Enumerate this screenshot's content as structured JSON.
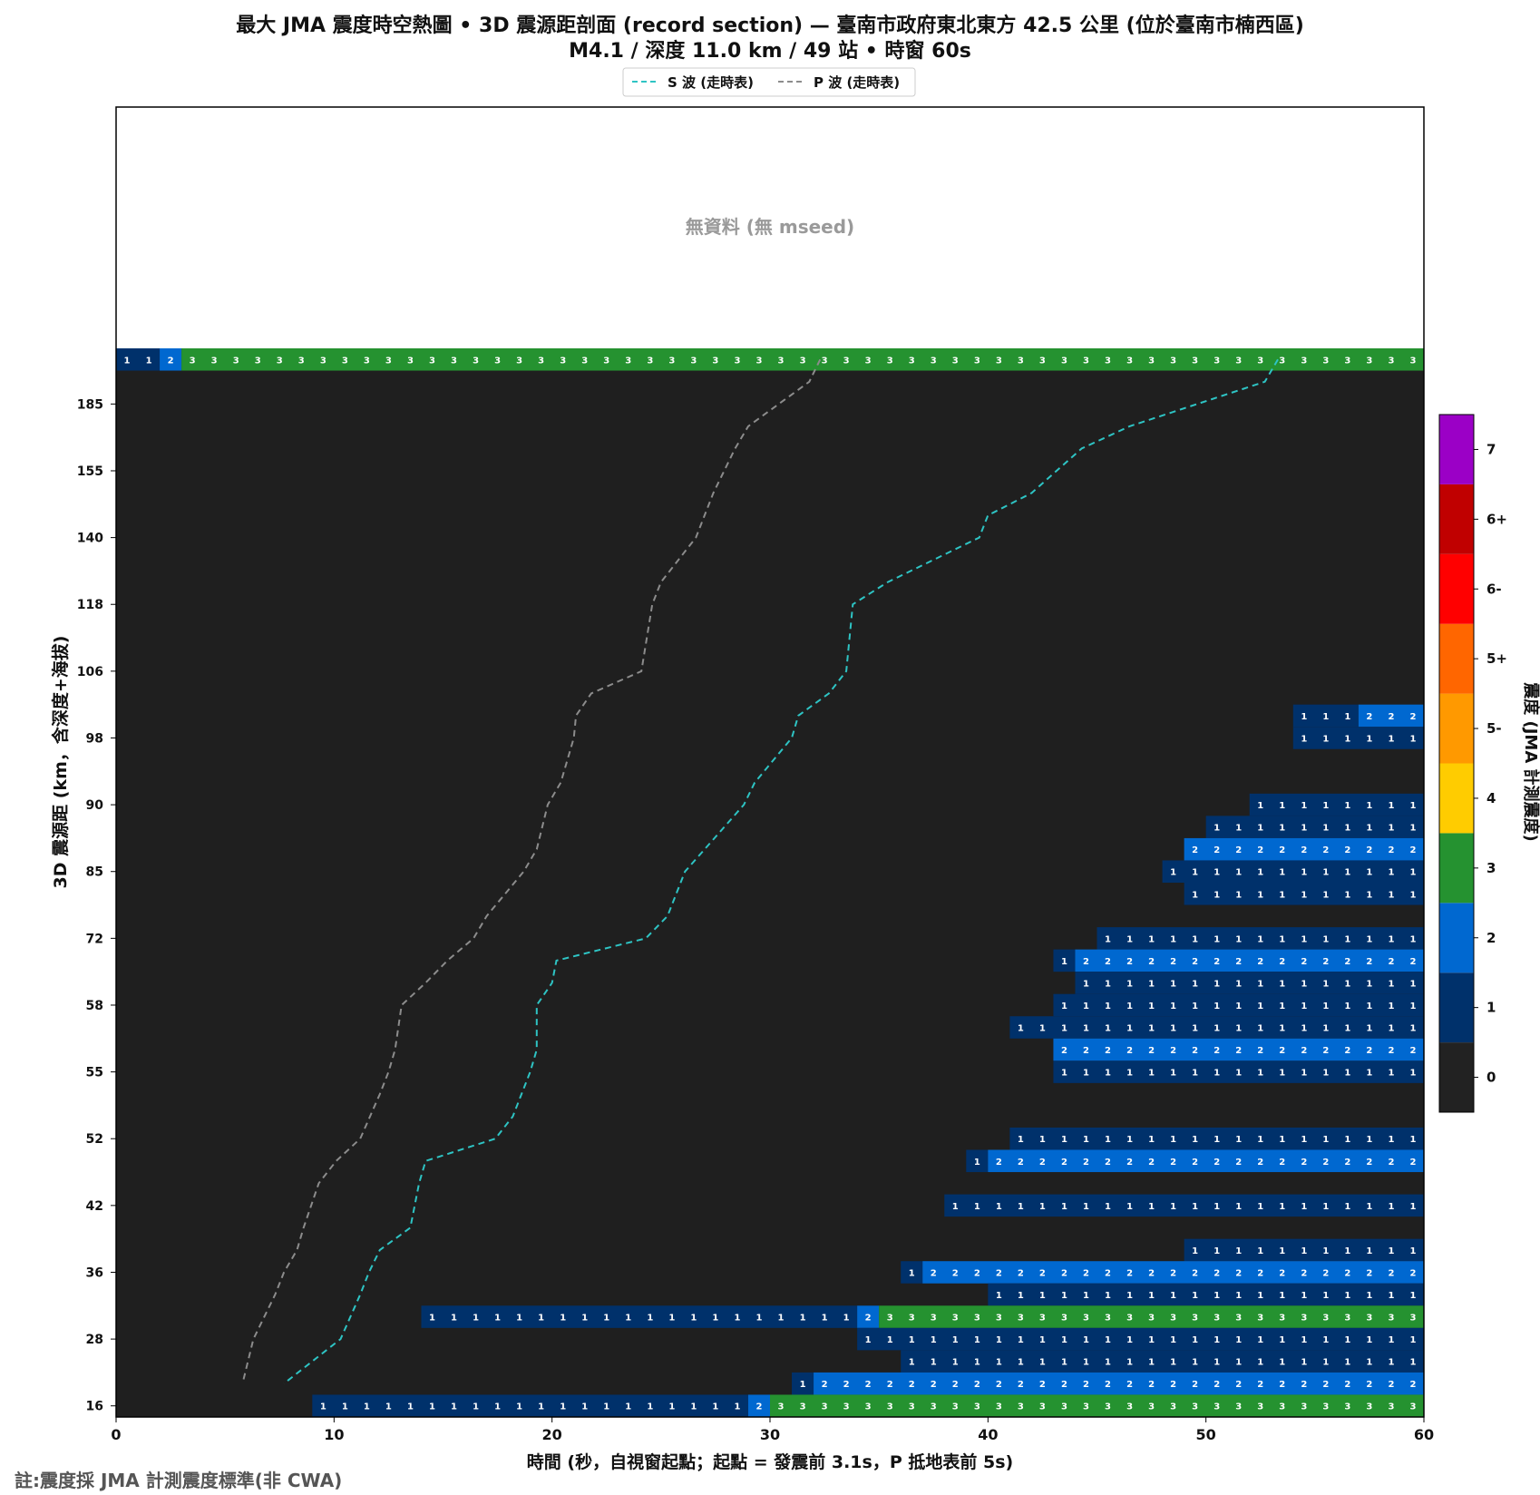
{
  "title_line1": "最大 JMA 震度時空熱圖 • 3D 震源距剖面 (record section) — 臺南市政府東北東方 42.5 公里 (位於臺南市楠西區)",
  "title_line2": "M4.1 / 深度 11.0 km / 49 站 • 時窗 60s",
  "legend": [
    {
      "label": "S 波 (走時表)",
      "color": "#2ec4c4"
    },
    {
      "label": "P 波 (走時表)",
      "color": "#8c8c8c"
    }
  ],
  "no_data_text": "無資料 (無 mseed)",
  "footnote": "註:震度採 JMA 計測震度標準(非 CWA)",
  "colors": {
    "panel_background": "#1f1f1f",
    "no_data_background": "#ffffff"
  },
  "chart_data": {
    "type": "heatmap",
    "xlabel": "時間 (秒，自視窗起點；起點 = 發震前 3.1s，P 抵地表前 5s)",
    "ylabel": "3D 震源距 (km，含深度+海拔)",
    "xlim": [
      0,
      60
    ],
    "x_ticks": [
      0,
      10,
      20,
      30,
      40,
      50,
      60
    ],
    "y_tick_labels": [
      "16",
      "28",
      "36",
      "42",
      "52",
      "55",
      "58",
      "72",
      "85",
      "90",
      "98",
      "106",
      "118",
      "140",
      "155",
      "185"
    ],
    "colorbar": {
      "label": "震度 (JMA 計測震度)",
      "levels": [
        {
          "label": "0",
          "color": "#222222"
        },
        {
          "label": "1",
          "color": "#00316b"
        },
        {
          "label": "2",
          "color": "#0068d0"
        },
        {
          "label": "3",
          "color": "#259230"
        },
        {
          "label": "4",
          "color": "#ffcc00"
        },
        {
          "label": "5-",
          "color": "#ff9900"
        },
        {
          "label": "5+",
          "color": "#ff6600"
        },
        {
          "label": "6-",
          "color": "#ff0000"
        },
        {
          "label": "6+",
          "color": "#c00000"
        },
        {
          "label": "7",
          "color": "#9b00c6"
        }
      ]
    },
    "rows": [
      {
        "row": 0,
        "segments": [
          [
            0,
            2,
            1
          ],
          [
            2,
            3,
            2
          ],
          [
            3,
            60,
            3
          ]
        ]
      },
      {
        "row": 16,
        "segments": [
          [
            54,
            57,
            1
          ],
          [
            57,
            60,
            2
          ]
        ]
      },
      {
        "row": 17,
        "segments": [
          [
            54,
            60,
            1
          ]
        ]
      },
      {
        "row": 20,
        "segments": [
          [
            52,
            60,
            1
          ]
        ]
      },
      {
        "row": 21,
        "segments": [
          [
            50,
            60,
            1
          ]
        ]
      },
      {
        "row": 22,
        "segments": [
          [
            49,
            60,
            2
          ]
        ]
      },
      {
        "row": 23,
        "segments": [
          [
            48,
            60,
            1
          ]
        ]
      },
      {
        "row": 24,
        "segments": [
          [
            49,
            60,
            1
          ]
        ]
      },
      {
        "row": 26,
        "segments": [
          [
            45,
            60,
            1
          ]
        ]
      },
      {
        "row": 27,
        "segments": [
          [
            43,
            44,
            1
          ],
          [
            44,
            60,
            2
          ]
        ]
      },
      {
        "row": 28,
        "segments": [
          [
            44,
            60,
            1
          ]
        ]
      },
      {
        "row": 29,
        "segments": [
          [
            43,
            60,
            1
          ]
        ]
      },
      {
        "row": 30,
        "segments": [
          [
            41,
            60,
            1
          ]
        ]
      },
      {
        "row": 31,
        "segments": [
          [
            43,
            60,
            2
          ]
        ]
      },
      {
        "row": 32,
        "segments": [
          [
            43,
            60,
            1
          ]
        ]
      },
      {
        "row": 35,
        "segments": [
          [
            41,
            60,
            1
          ]
        ]
      },
      {
        "row": 36,
        "segments": [
          [
            39,
            40,
            1
          ],
          [
            40,
            60,
            2
          ]
        ]
      },
      {
        "row": 38,
        "segments": [
          [
            38,
            60,
            1
          ]
        ]
      },
      {
        "row": 40,
        "segments": [
          [
            49,
            60,
            1
          ]
        ]
      },
      {
        "row": 41,
        "segments": [
          [
            36,
            37,
            1
          ],
          [
            37,
            60,
            2
          ]
        ]
      },
      {
        "row": 42,
        "segments": [
          [
            40,
            60,
            1
          ]
        ]
      },
      {
        "row": 43,
        "segments": [
          [
            14,
            34,
            1
          ],
          [
            34,
            35,
            2
          ],
          [
            35,
            60,
            3
          ]
        ]
      },
      {
        "row": 44,
        "segments": [
          [
            34,
            60,
            1
          ]
        ]
      },
      {
        "row": 45,
        "segments": [
          [
            36,
            60,
            1
          ]
        ]
      },
      {
        "row": 46,
        "segments": [
          [
            31,
            32,
            1
          ],
          [
            32,
            60,
            2
          ]
        ]
      },
      {
        "row": 47,
        "segments": [
          [
            9,
            29,
            1
          ],
          [
            29,
            30,
            2
          ],
          [
            30,
            60,
            3
          ]
        ]
      }
    ],
    "p_wave_time_by_row": [
      [
        0,
        32.3
      ],
      [
        1,
        31.8
      ],
      [
        3,
        29.0
      ],
      [
        4,
        28.4
      ],
      [
        6,
        27.4
      ],
      [
        8,
        26.6
      ],
      [
        10,
        25.0
      ],
      [
        11,
        24.6
      ],
      [
        14,
        24.1
      ],
      [
        15,
        21.8
      ],
      [
        16,
        21.1
      ],
      [
        17,
        21.0
      ],
      [
        19,
        20.4
      ],
      [
        20,
        19.8
      ],
      [
        22,
        19.3
      ],
      [
        23,
        18.7
      ],
      [
        25,
        17.0
      ],
      [
        26,
        16.4
      ],
      [
        27,
        15.2
      ],
      [
        28,
        14.2
      ],
      [
        29,
        13.1
      ],
      [
        31,
        12.8
      ],
      [
        32,
        12.5
      ],
      [
        33,
        12.1
      ],
      [
        35,
        11.2
      ],
      [
        36,
        10.1
      ],
      [
        37,
        9.3
      ],
      [
        39,
        8.6
      ],
      [
        40,
        8.3
      ],
      [
        41,
        7.7
      ],
      [
        42,
        7.3
      ],
      [
        44,
        6.3
      ],
      [
        46,
        5.8
      ]
    ],
    "s_wave_time_by_row": [
      [
        0,
        53.3
      ],
      [
        1,
        52.7
      ],
      [
        3,
        46.5
      ],
      [
        4,
        44.3
      ],
      [
        6,
        42.0
      ],
      [
        7,
        40.0
      ],
      [
        8,
        39.6
      ],
      [
        10,
        35.4
      ],
      [
        11,
        33.8
      ],
      [
        14,
        33.5
      ],
      [
        15,
        32.7
      ],
      [
        16,
        31.3
      ],
      [
        17,
        31.0
      ],
      [
        19,
        29.3
      ],
      [
        20,
        28.8
      ],
      [
        22,
        27.0
      ],
      [
        23,
        26.1
      ],
      [
        25,
        25.3
      ],
      [
        26,
        24.3
      ],
      [
        27,
        20.2
      ],
      [
        28,
        20.0
      ],
      [
        29,
        19.3
      ],
      [
        31,
        19.3
      ],
      [
        32,
        19.0
      ],
      [
        34,
        18.2
      ],
      [
        35,
        17.4
      ],
      [
        36,
        14.2
      ],
      [
        37,
        13.9
      ],
      [
        39,
        13.5
      ],
      [
        40,
        12.1
      ],
      [
        41,
        11.6
      ],
      [
        42,
        11.2
      ],
      [
        44,
        10.3
      ],
      [
        46,
        7.7
      ]
    ]
  }
}
